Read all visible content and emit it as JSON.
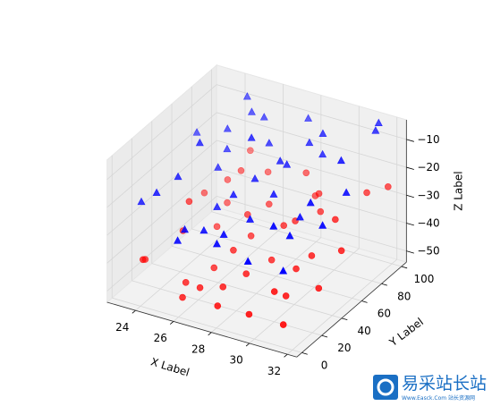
{
  "chart_data": {
    "type": "scatter3d",
    "xlabel": "X Label",
    "ylabel": "Y Label",
    "zlabel": "Z Label",
    "xlim": [
      22.5,
      32.5
    ],
    "ylim": [
      -5,
      105
    ],
    "zlim": [
      -54,
      -3
    ],
    "xticks": [
      24,
      26,
      28,
      30,
      32
    ],
    "yticks": [
      0,
      20,
      40,
      60,
      80,
      100
    ],
    "zticks": [
      {
        "value": -50,
        "label": "−50"
      },
      {
        "value": -40,
        "label": "−40"
      },
      {
        "value": -30,
        "label": "−30"
      },
      {
        "value": -20,
        "label": "−20"
      },
      {
        "value": -10,
        "label": "−10"
      }
    ],
    "grid": true,
    "series": [
      {
        "color": "red",
        "marker": "o",
        "x": [
          23.5,
          24.2,
          25.1,
          26.3,
          27.8,
          28.4,
          29.9,
          31.2,
          30.5,
          27.1,
          24.8,
          25.6,
          26.9,
          28.8,
          29.3,
          31.7,
          23.9,
          30.1,
          27.4,
          26.1,
          25.3,
          28.1,
          29.6,
          31.0,
          24.4,
          26.6,
          27.9,
          30.8,
          23.2,
          28.6,
          25.9,
          29.1,
          31.5,
          24.6,
          27.2,
          26.4,
          30.3,
          28.9,
          25.0,
          31.9
        ],
        "y": [
          12,
          45,
          80,
          30,
          5,
          60,
          22,
          90,
          48,
          70,
          95,
          15,
          38,
          84,
          8,
          55,
          66,
          40,
          18,
          88,
          52,
          28,
          74,
          10,
          35,
          58,
          92,
          66,
          20,
          44,
          6,
          82,
          36,
          76,
          50,
          14,
          26,
          62,
          68,
          98
        ],
        "z": [
          -42,
          -30,
          -28,
          -45,
          -48,
          -35,
          -44,
          -27,
          -38,
          -33,
          -26,
          -47,
          -40,
          -31,
          -49,
          -36,
          -34,
          -41,
          -46,
          -29,
          -39,
          -43,
          -32,
          -50,
          -37,
          -34,
          -27,
          -30,
          -45,
          -42,
          -49,
          -29,
          -44,
          -31,
          -38,
          -47,
          -46,
          -33,
          -36,
          -26
        ]
      },
      {
        "color": "blue",
        "marker": "^",
        "x": [
          23.8,
          24.5,
          25.4,
          26.2,
          27.5,
          28.3,
          29.7,
          31.4,
          30.6,
          27.0,
          24.9,
          25.7,
          26.8,
          28.7,
          29.4,
          31.8,
          23.4,
          30.2,
          27.6,
          26.0,
          25.2,
          28.2,
          29.5,
          31.1,
          24.3,
          26.7,
          27.8,
          30.9,
          23.1,
          28.5,
          25.8,
          29.2,
          31.6,
          24.7,
          27.3,
          26.5,
          30.4,
          28.0,
          25.1,
          31.3
        ],
        "y": [
          20,
          50,
          85,
          35,
          10,
          65,
          25,
          95,
          45,
          72,
          90,
          12,
          40,
          80,
          5,
          58,
          68,
          42,
          15,
          86,
          55,
          30,
          78,
          8,
          32,
          60,
          96,
          70,
          18,
          48,
          3,
          84,
          38,
          74,
          52,
          16,
          28,
          64,
          66,
          100
        ],
        "z": [
          -20,
          -10,
          -8,
          -25,
          -28,
          -15,
          -22,
          -6,
          -18,
          -12,
          -5,
          -27,
          -21,
          -11,
          -29,
          -16,
          -14,
          -23,
          -26,
          -9,
          -19,
          -24,
          -13,
          -30,
          -17,
          -7,
          -9,
          -10,
          -24,
          -20,
          -28,
          -8,
          -22,
          -12,
          -18,
          -27,
          -25,
          -14,
          -16,
          -5
        ]
      }
    ]
  },
  "watermark": {
    "text": "易采站长站",
    "subtext": "Www.Easck.Com 站长资源网"
  }
}
